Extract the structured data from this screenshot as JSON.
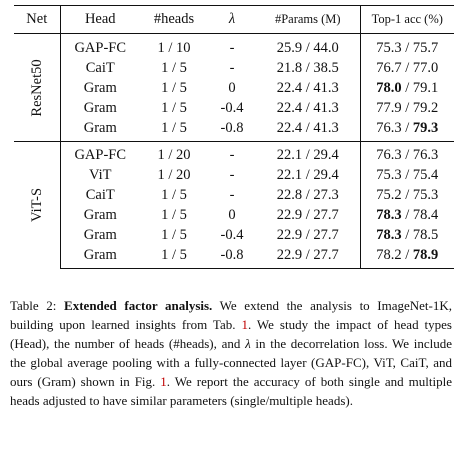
{
  "table": {
    "headers": {
      "net": "Net",
      "head": "Head",
      "heads": "#heads",
      "lambda": "λ",
      "params": "#Params (M)",
      "acc": "Top-1 acc (%)"
    },
    "groups": [
      {
        "net": "ResNet50",
        "rows": [
          {
            "head": "GAP-FC",
            "heads": "1 / 10",
            "lambda": "-",
            "params": "25.9 / 44.0",
            "acc_single": "75.3",
            "acc_multi": "75.7"
          },
          {
            "head": "CaiT",
            "heads": "1 / 5",
            "lambda": "-",
            "params": "21.8 / 38.5",
            "acc_single": "76.7",
            "acc_multi": "77.0"
          },
          {
            "head": "Gram",
            "heads": "1 / 5",
            "lambda": "0",
            "params": "22.4 / 41.3",
            "acc_single": "78.0",
            "acc_multi": "79.1"
          },
          {
            "head": "Gram",
            "heads": "1 / 5",
            "lambda": "-0.4",
            "params": "22.4 / 41.3",
            "acc_single": "77.9",
            "acc_multi": "79.2"
          },
          {
            "head": "Gram",
            "heads": "1 / 5",
            "lambda": "-0.8",
            "params": "22.4 / 41.3",
            "acc_single": "76.3",
            "acc_multi": "79.3"
          }
        ]
      },
      {
        "net": "ViT-S",
        "rows": [
          {
            "head": "GAP-FC",
            "heads": "1 / 20",
            "lambda": "-",
            "params": "22.1 / 29.4",
            "acc_single": "76.3",
            "acc_multi": "76.3"
          },
          {
            "head": "ViT",
            "heads": "1 / 20",
            "lambda": "-",
            "params": "22.1 / 29.4",
            "acc_single": "75.3",
            "acc_multi": "75.4"
          },
          {
            "head": "CaiT",
            "heads": "1 / 5",
            "lambda": "-",
            "params": "22.8 / 27.3",
            "acc_single": "75.2",
            "acc_multi": "75.3"
          },
          {
            "head": "Gram",
            "heads": "1 / 5",
            "lambda": "0",
            "params": "22.9 / 27.7",
            "acc_single": "78.3",
            "acc_multi": "78.4"
          },
          {
            "head": "Gram",
            "heads": "1 / 5",
            "lambda": "-0.4",
            "params": "22.9 / 27.7",
            "acc_single": "78.3",
            "acc_multi": "78.5"
          },
          {
            "head": "Gram",
            "heads": "1 / 5",
            "lambda": "-0.8",
            "params": "22.9 / 27.7",
            "acc_single": "78.2",
            "acc_multi": "78.9"
          }
        ]
      }
    ],
    "acc_separator": " / "
  },
  "caption": {
    "label": "Table 2:",
    "title": "Extended factor analysis.",
    "text_1": " We extend the analysis to ImageNet-1K, building upon learned insights from Tab. ",
    "ref_1": "1",
    "text_2": ". We study the impact of head types (Head), the number of heads (#heads), and ",
    "lambda": "λ",
    "text_3": " in the decorrelation loss. We include the global average pooling with a fully-connected layer (GAP-FC), ViT, CaiT, and ours (Gram) shown in Fig. ",
    "ref_2": "1",
    "text_4": ". We report the accuracy of both single and multiple heads adjusted to have similar parameters (single/multiple heads)."
  },
  "colors": {
    "reference_link": "#c00000"
  }
}
